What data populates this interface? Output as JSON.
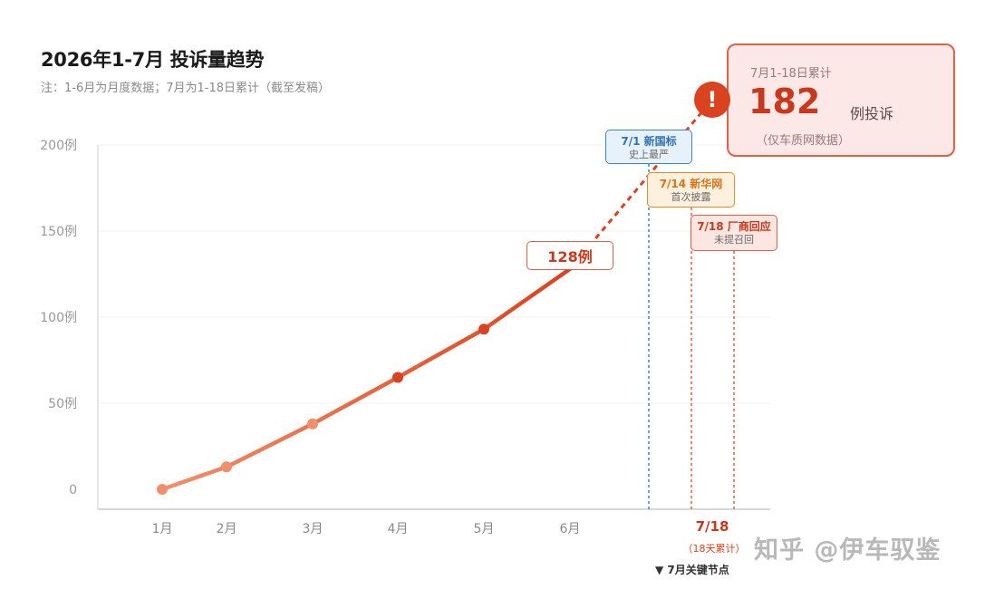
{
  "header": {
    "title": "2026年1-7月 投诉量趋势",
    "subtitle": "注：1-6月为月度数据；7月为1-18日累计（截至发稿）"
  },
  "chart_data": {
    "type": "line",
    "categories": [
      "1月",
      "2月",
      "3月",
      "4月",
      "5月",
      "6月"
    ],
    "values": [
      0,
      13,
      38,
      65,
      93,
      128
    ],
    "july_value": 182,
    "y_tick_labels": [
      "0",
      "50例",
      "100例",
      "150例",
      "200例"
    ],
    "y_ticks": [
      0,
      50,
      100,
      150,
      200
    ],
    "ylim": [
      0,
      200
    ],
    "grid": true,
    "june_label": "128例",
    "july_x_label": "7/18",
    "july_x_note": "（18天累计）",
    "colors": {
      "line_start": "#f0906a",
      "line_end": "#d9431f",
      "grid": "#f0f0f0",
      "axis": "#cccccc",
      "blue": "#3a86c8",
      "orange": "#e48a2e",
      "red": "#e05f45"
    }
  },
  "annotations": [
    {
      "date_label": "7/1 新国标",
      "desc": "史上最严"
    },
    {
      "date_label": "7/14 新华网",
      "desc": "首次披露"
    },
    {
      "date_label": "7/18 厂商回应",
      "desc": "未提召回"
    }
  ],
  "callout": {
    "label": "7月1-18日累计",
    "value": "182",
    "unit": "例投诉",
    "source": "（仅车质网数据）",
    "alert_icon": "exclamation-icon",
    "alert_glyph": "!"
  },
  "footer": {
    "key_nodes": "▼ 7月关键节点",
    "watermark": "知乎 @伊车驭鉴"
  }
}
